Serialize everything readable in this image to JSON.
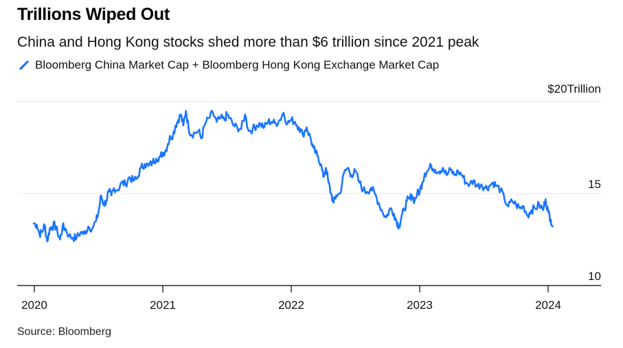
{
  "title": "Trillions Wiped Out",
  "subtitle": "China and Hong Kong stocks shed more than $6 trillion since 2021 peak",
  "legend_label": "Bloomberg China Market Cap + Bloomberg Hong Kong Exchange Market Cap",
  "source": "Source: Bloomberg",
  "colors": {
    "line": "#1a75ff",
    "grid": "#e6e6e6",
    "axis": "#000000"
  },
  "chart_data": {
    "type": "line",
    "title": "Trillions Wiped Out",
    "ylabel": "$ Trillion",
    "y_unit_label": "Trillion",
    "ylim": [
      10,
      20
    ],
    "xlim": [
      2020.0,
      2024.35
    ],
    "y_ticks": [
      {
        "value": 20,
        "label": "$20"
      },
      {
        "value": 15,
        "label": "15"
      },
      {
        "value": 10,
        "label": "10"
      }
    ],
    "x_ticks": [
      {
        "value": 2020,
        "label": "2020"
      },
      {
        "value": 2021,
        "label": "2021"
      },
      {
        "value": 2022,
        "label": "2022"
      },
      {
        "value": 2023,
        "label": "2023"
      },
      {
        "value": 2024,
        "label": "2024"
      }
    ],
    "series": [
      {
        "name": "Bloomberg China Market Cap + Bloomberg Hong Kong Exchange Market Cap",
        "x": [
          2019.99,
          2020.02,
          2020.04,
          2020.06,
          2020.08,
          2020.1,
          2020.12,
          2020.14,
          2020.16,
          2020.18,
          2020.2,
          2020.22,
          2020.24,
          2020.27,
          2020.3,
          2020.33,
          2020.36,
          2020.39,
          2020.42,
          2020.45,
          2020.48,
          2020.5,
          2020.52,
          2020.54,
          2020.56,
          2020.58,
          2020.6,
          2020.62,
          2020.65,
          2020.68,
          2020.71,
          2020.74,
          2020.77,
          2020.8,
          2020.83,
          2020.86,
          2020.89,
          2020.92,
          2020.95,
          2020.98,
          2021.0,
          2021.02,
          2021.04,
          2021.06,
          2021.08,
          2021.1,
          2021.12,
          2021.14,
          2021.16,
          2021.18,
          2021.2,
          2021.22,
          2021.25,
          2021.28,
          2021.3,
          2021.33,
          2021.36,
          2021.39,
          2021.42,
          2021.45,
          2021.48,
          2021.5,
          2021.52,
          2021.55,
          2021.58,
          2021.61,
          2021.64,
          2021.67,
          2021.7,
          2021.73,
          2021.76,
          2021.79,
          2021.82,
          2021.85,
          2021.88,
          2021.91,
          2021.94,
          2021.97,
          2022.0,
          2022.03,
          2022.06,
          2022.09,
          2022.12,
          2022.15,
          2022.17,
          2022.19,
          2022.21,
          2022.23,
          2022.25,
          2022.27,
          2022.29,
          2022.31,
          2022.33,
          2022.35,
          2022.38,
          2022.41,
          2022.44,
          2022.47,
          2022.5,
          2022.53,
          2022.56,
          2022.59,
          2022.62,
          2022.65,
          2022.68,
          2022.71,
          2022.74,
          2022.77,
          2022.8,
          2022.82,
          2022.84,
          2022.86,
          2022.88,
          2022.9,
          2022.92,
          2022.94,
          2022.96,
          2022.98,
          2023.0,
          2023.02,
          2023.04,
          2023.06,
          2023.09,
          2023.12,
          2023.15,
          2023.18,
          2023.21,
          2023.24,
          2023.27,
          2023.3,
          2023.33,
          2023.36,
          2023.39,
          2023.42,
          2023.45,
          2023.48,
          2023.51,
          2023.54,
          2023.57,
          2023.6,
          2023.63,
          2023.66,
          2023.69,
          2023.72,
          2023.75,
          2023.78,
          2023.81,
          2023.84,
          2023.87,
          2023.9,
          2023.93,
          2023.96,
          2023.98,
          2024.0,
          2024.02,
          2024.04
        ],
        "y": [
          13.4,
          13.3,
          12.8,
          12.9,
          13.3,
          12.4,
          13.1,
          13.2,
          13.3,
          12.9,
          12.5,
          13.2,
          13.1,
          12.7,
          12.6,
          12.6,
          12.9,
          12.8,
          13.2,
          13.1,
          13.5,
          14.0,
          14.9,
          14.4,
          14.6,
          15.1,
          14.9,
          15.3,
          15.2,
          15.6,
          15.5,
          15.9,
          15.7,
          15.8,
          16.4,
          16.6,
          16.5,
          16.7,
          16.9,
          17.0,
          17.2,
          17.3,
          17.7,
          18.1,
          18.2,
          18.7,
          19.0,
          19.3,
          18.7,
          19.5,
          18.6,
          18.2,
          18.3,
          18.4,
          18.0,
          18.8,
          19.1,
          19.4,
          18.9,
          19.1,
          19.0,
          19.3,
          19.1,
          18.7,
          18.6,
          18.5,
          19.3,
          18.4,
          18.5,
          18.7,
          18.8,
          18.6,
          18.9,
          18.9,
          18.8,
          19.0,
          19.4,
          18.8,
          19.0,
          18.9,
          18.6,
          18.2,
          18.6,
          18.0,
          17.5,
          17.2,
          17.0,
          16.6,
          15.9,
          16.4,
          15.6,
          15.0,
          14.5,
          14.9,
          15.0,
          16.1,
          16.4,
          16.0,
          16.2,
          15.6,
          15.2,
          15.1,
          15.3,
          15.0,
          14.5,
          14.0,
          13.7,
          14.2,
          13.9,
          13.5,
          13.2,
          13.8,
          14.1,
          14.6,
          14.7,
          14.9,
          14.6,
          15.0,
          15.1,
          15.6,
          16.1,
          16.2,
          16.5,
          16.3,
          16.2,
          16.4,
          16.0,
          16.3,
          16.0,
          16.2,
          16.0,
          15.6,
          15.5,
          15.7,
          15.4,
          15.5,
          15.3,
          15.4,
          15.6,
          15.4,
          15.2,
          14.7,
          14.3,
          14.6,
          14.4,
          14.2,
          14.3,
          13.8,
          14.1,
          14.2,
          14.4,
          14.1,
          14.7,
          14.0,
          13.6,
          13.2
        ]
      }
    ],
    "annotations": []
  }
}
